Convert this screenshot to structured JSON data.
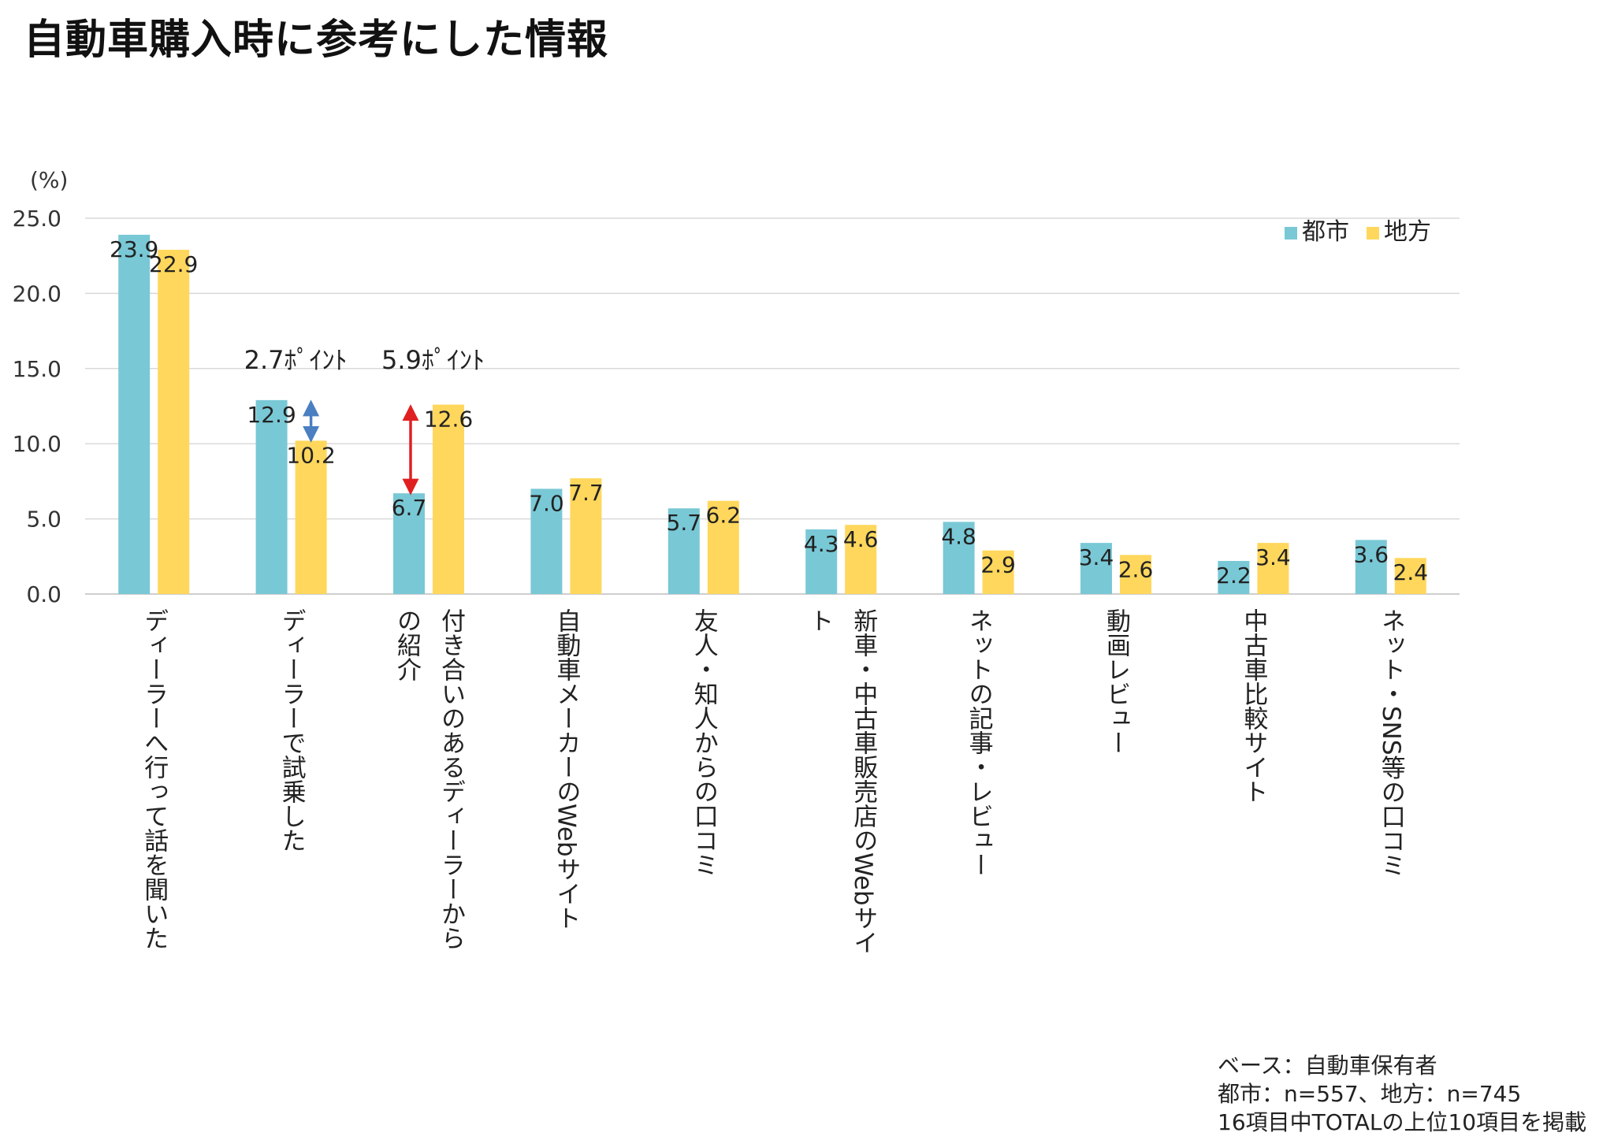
{
  "title": "自動車購入時に参考にした情報",
  "chart_data": {
    "type": "bar",
    "unit_label": "(%)",
    "ylim": [
      0,
      25
    ],
    "y_ticks": [
      "0.0",
      "5.0",
      "10.0",
      "15.0",
      "20.0",
      "25.0"
    ],
    "categories": [
      "ディーラーへ行って話を聞いた",
      "ディーラーで試乗した",
      "付き合いのあるディーラーからの紹介",
      "自動車メーカーのWebサイト",
      "友人・知人からの口コミ",
      "新車・中古車販売店のWebサイト",
      "ネットの記事・レビュー",
      "動画レビュー",
      "中古車比較サイト",
      "ネット・SNS等の口コミ"
    ],
    "category_lines": [
      [
        "ディーラーへ行って話を聞いた"
      ],
      [
        "ディーラーで試乗した"
      ],
      [
        "付き合いのあるディーラーから",
        "の紹介"
      ],
      [
        "自動車メーカーのWebサイト"
      ],
      [
        "友人・知人からの口コミ"
      ],
      [
        "新車・中古車販売店のWebサイ",
        "ト"
      ],
      [
        "ネットの記事・レビュー"
      ],
      [
        "動画レビュー"
      ],
      [
        "中古車比較サイト"
      ],
      [
        "ネット・SNS等の口コミ"
      ]
    ],
    "series": [
      {
        "name": "都市",
        "color": "#79C8D6",
        "values": [
          23.9,
          12.9,
          6.7,
          7.0,
          5.7,
          4.3,
          4.8,
          3.4,
          2.2,
          3.6
        ]
      },
      {
        "name": "地方",
        "color": "#FFD75C",
        "values": [
          22.9,
          10.2,
          12.6,
          7.7,
          6.2,
          4.6,
          2.9,
          2.6,
          3.4,
          2.4
        ]
      }
    ],
    "annotations": [
      {
        "text": "2.7ﾎﾟｲﾝﾄ",
        "category_index": 1,
        "arrow_color": "#4A7FC1"
      },
      {
        "text": "5.9ﾎﾟｲﾝﾄ",
        "category_index": 2,
        "arrow_color": "#E02020"
      }
    ],
    "legend_position": "top-right"
  },
  "footnote": {
    "line1": "ベース：自動車保有者",
    "line2": "都市：n=557、地方：n=745",
    "line3": "16項目中TOTALの上位10項目を掲載"
  }
}
